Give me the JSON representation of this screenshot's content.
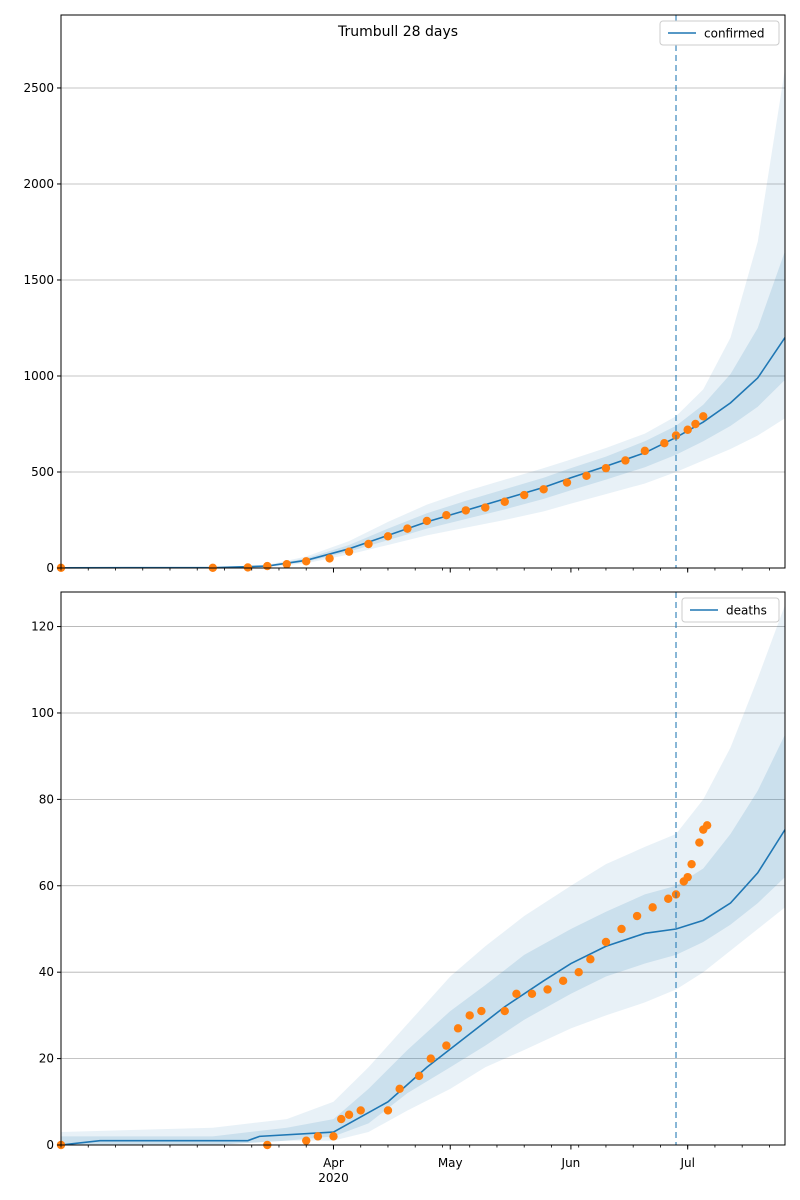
{
  "figure": {
    "title": "Trumbull 28 days",
    "forecast_start": "2020-06-28"
  },
  "colors": {
    "model": "#1f77b4",
    "observed": "#ff7f0e",
    "band": "#1f77b4",
    "grid": "#b0b0b0"
  },
  "x_axis": {
    "domain": [
      "2020-01-22",
      "2020-07-26"
    ],
    "ticks": [
      {
        "date": "2020-04-01",
        "label": "Apr",
        "sublabel": "2020"
      },
      {
        "date": "2020-05-01",
        "label": "May"
      },
      {
        "date": "2020-06-01",
        "label": "Jun"
      },
      {
        "date": "2020-07-01",
        "label": "Jul"
      }
    ]
  },
  "chart_data": [
    {
      "type": "line",
      "legend": "confirmed",
      "legend_position": "top-right",
      "ylim": [
        0,
        2880
      ],
      "yticks": [
        0,
        500,
        1000,
        1500,
        2000,
        2500
      ],
      "grid": "horizontal",
      "model_median": [
        [
          "2020-01-22",
          1
        ],
        [
          "2020-03-01",
          2
        ],
        [
          "2020-03-15",
          10
        ],
        [
          "2020-03-25",
          40
        ],
        [
          "2020-04-05",
          100
        ],
        [
          "2020-04-15",
          170
        ],
        [
          "2020-04-25",
          240
        ],
        [
          "2020-05-05",
          300
        ],
        [
          "2020-05-15",
          360
        ],
        [
          "2020-05-25",
          420
        ],
        [
          "2020-06-01",
          470
        ],
        [
          "2020-06-10",
          530
        ],
        [
          "2020-06-20",
          600
        ],
        [
          "2020-06-28",
          680
        ],
        [
          "2020-07-05",
          760
        ],
        [
          "2020-07-12",
          860
        ],
        [
          "2020-07-19",
          990
        ],
        [
          "2020-07-26",
          1200
        ]
      ],
      "bands": [
        {
          "label": "outer",
          "points": [
            [
              "2020-01-22",
              1,
              1
            ],
            [
              "2020-03-01",
              1,
              3
            ],
            [
              "2020-03-15",
              5,
              16
            ],
            [
              "2020-03-25",
              25,
              60
            ],
            [
              "2020-04-05",
              70,
              140
            ],
            [
              "2020-04-15",
              120,
              240
            ],
            [
              "2020-04-25",
              170,
              330
            ],
            [
              "2020-05-05",
              210,
              400
            ],
            [
              "2020-05-15",
              250,
              460
            ],
            [
              "2020-05-25",
              295,
              520
            ],
            [
              "2020-06-01",
              335,
              565
            ],
            [
              "2020-06-10",
              385,
              625
            ],
            [
              "2020-06-20",
              440,
              700
            ],
            [
              "2020-06-28",
              500,
              790
            ],
            [
              "2020-07-05",
              560,
              930
            ],
            [
              "2020-07-12",
              620,
              1200
            ],
            [
              "2020-07-19",
              690,
              1700
            ],
            [
              "2020-07-26",
              780,
              2600
            ]
          ]
        },
        {
          "label": "inner",
          "points": [
            [
              "2020-01-22",
              1,
              1
            ],
            [
              "2020-03-01",
              1,
              2
            ],
            [
              "2020-03-15",
              7,
              13
            ],
            [
              "2020-03-25",
              32,
              50
            ],
            [
              "2020-04-05",
              85,
              120
            ],
            [
              "2020-04-15",
              145,
              205
            ],
            [
              "2020-04-25",
              205,
              285
            ],
            [
              "2020-05-05",
              255,
              350
            ],
            [
              "2020-05-15",
              305,
              410
            ],
            [
              "2020-05-25",
              360,
              470
            ],
            [
              "2020-06-01",
              405,
              520
            ],
            [
              "2020-06-10",
              460,
              580
            ],
            [
              "2020-06-20",
              525,
              660
            ],
            [
              "2020-06-28",
              590,
              740
            ],
            [
              "2020-07-05",
              660,
              850
            ],
            [
              "2020-07-12",
              740,
              1010
            ],
            [
              "2020-07-19",
              840,
              1250
            ],
            [
              "2020-07-26",
              980,
              1650
            ]
          ]
        }
      ],
      "observed": [
        [
          "2020-01-22",
          1
        ],
        [
          "2020-03-01",
          1
        ],
        [
          "2020-03-10",
          3
        ],
        [
          "2020-03-15",
          10
        ],
        [
          "2020-03-20",
          20
        ],
        [
          "2020-03-25",
          35
        ],
        [
          "2020-03-31",
          50
        ],
        [
          "2020-04-05",
          85
        ],
        [
          "2020-04-10",
          125
        ],
        [
          "2020-04-15",
          165
        ],
        [
          "2020-04-20",
          205
        ],
        [
          "2020-04-25",
          245
        ],
        [
          "2020-04-30",
          275
        ],
        [
          "2020-05-05",
          300
        ],
        [
          "2020-05-10",
          315
        ],
        [
          "2020-05-15",
          345
        ],
        [
          "2020-05-20",
          380
        ],
        [
          "2020-05-25",
          410
        ],
        [
          "2020-05-31",
          445
        ],
        [
          "2020-06-05",
          480
        ],
        [
          "2020-06-10",
          520
        ],
        [
          "2020-06-15",
          560
        ],
        [
          "2020-06-20",
          610
        ],
        [
          "2020-06-25",
          650
        ],
        [
          "2020-06-28",
          690
        ],
        [
          "2020-07-01",
          720
        ],
        [
          "2020-07-03",
          750
        ],
        [
          "2020-07-05",
          790
        ]
      ]
    },
    {
      "type": "line",
      "legend": "deaths",
      "legend_position": "top-right",
      "ylim": [
        0,
        128
      ],
      "yticks": [
        0,
        20,
        40,
        60,
        80,
        100,
        120
      ],
      "grid": "horizontal",
      "model_median": [
        [
          "2020-01-22",
          0
        ],
        [
          "2020-02-01",
          1
        ],
        [
          "2020-03-10",
          1
        ],
        [
          "2020-03-13",
          2
        ],
        [
          "2020-04-01",
          3
        ],
        [
          "2020-04-05",
          5
        ],
        [
          "2020-04-15",
          10
        ],
        [
          "2020-04-25",
          18
        ],
        [
          "2020-05-05",
          25
        ],
        [
          "2020-05-15",
          32
        ],
        [
          "2020-05-25",
          38
        ],
        [
          "2020-06-01",
          42
        ],
        [
          "2020-06-10",
          46
        ],
        [
          "2020-06-20",
          49
        ],
        [
          "2020-06-28",
          50
        ],
        [
          "2020-07-05",
          52
        ],
        [
          "2020-07-12",
          56
        ],
        [
          "2020-07-19",
          63
        ],
        [
          "2020-07-26",
          73
        ]
      ],
      "bands": [
        {
          "label": "outer",
          "points": [
            [
              "2020-01-22",
              0,
              3
            ],
            [
              "2020-03-01",
              0,
              4
            ],
            [
              "2020-03-20",
              1,
              6
            ],
            [
              "2020-04-01",
              1,
              10
            ],
            [
              "2020-04-10",
              3,
              18
            ],
            [
              "2020-04-20",
              8,
              28
            ],
            [
              "2020-05-01",
              13,
              39
            ],
            [
              "2020-05-10",
              18,
              46
            ],
            [
              "2020-05-20",
              22,
              53
            ],
            [
              "2020-06-01",
              27,
              60
            ],
            [
              "2020-06-10",
              30,
              65
            ],
            [
              "2020-06-20",
              33,
              69
            ],
            [
              "2020-06-28",
              36,
              72
            ],
            [
              "2020-07-05",
              40,
              80
            ],
            [
              "2020-07-12",
              45,
              92
            ],
            [
              "2020-07-19",
              50,
              108
            ],
            [
              "2020-07-26",
              55,
              125
            ]
          ]
        },
        {
          "label": "inner",
          "points": [
            [
              "2020-01-22",
              0,
              2
            ],
            [
              "2020-03-01",
              0,
              2
            ],
            [
              "2020-03-20",
              1,
              4
            ],
            [
              "2020-04-01",
              2,
              6
            ],
            [
              "2020-04-10",
              5,
              13
            ],
            [
              "2020-04-20",
              12,
              22
            ],
            [
              "2020-05-01",
              18,
              31
            ],
            [
              "2020-05-10",
              23,
              37
            ],
            [
              "2020-05-20",
              29,
              44
            ],
            [
              "2020-06-01",
              35,
              50
            ],
            [
              "2020-06-10",
              39,
              54
            ],
            [
              "2020-06-20",
              42,
              58
            ],
            [
              "2020-06-28",
              44,
              60
            ],
            [
              "2020-07-05",
              47,
              64
            ],
            [
              "2020-07-12",
              51,
              72
            ],
            [
              "2020-07-19",
              56,
              82
            ],
            [
              "2020-07-26",
              62,
              95
            ]
          ]
        }
      ],
      "observed": [
        [
          "2020-01-22",
          0
        ],
        [
          "2020-03-15",
          0
        ],
        [
          "2020-03-25",
          1
        ],
        [
          "2020-03-28",
          2
        ],
        [
          "2020-04-01",
          2
        ],
        [
          "2020-04-03",
          6
        ],
        [
          "2020-04-05",
          7
        ],
        [
          "2020-04-08",
          8
        ],
        [
          "2020-04-15",
          8
        ],
        [
          "2020-04-18",
          13
        ],
        [
          "2020-04-23",
          16
        ],
        [
          "2020-04-26",
          20
        ],
        [
          "2020-04-30",
          23
        ],
        [
          "2020-05-03",
          27
        ],
        [
          "2020-05-06",
          30
        ],
        [
          "2020-05-09",
          31
        ],
        [
          "2020-05-15",
          31
        ],
        [
          "2020-05-18",
          35
        ],
        [
          "2020-05-22",
          35
        ],
        [
          "2020-05-26",
          36
        ],
        [
          "2020-05-30",
          38
        ],
        [
          "2020-06-03",
          40
        ],
        [
          "2020-06-06",
          43
        ],
        [
          "2020-06-10",
          47
        ],
        [
          "2020-06-14",
          50
        ],
        [
          "2020-06-18",
          53
        ],
        [
          "2020-06-22",
          55
        ],
        [
          "2020-06-26",
          57
        ],
        [
          "2020-06-28",
          58
        ],
        [
          "2020-06-30",
          61
        ],
        [
          "2020-07-01",
          62
        ],
        [
          "2020-07-02",
          65
        ],
        [
          "2020-07-04",
          70
        ],
        [
          "2020-07-05",
          73
        ],
        [
          "2020-07-06",
          74
        ]
      ]
    }
  ]
}
